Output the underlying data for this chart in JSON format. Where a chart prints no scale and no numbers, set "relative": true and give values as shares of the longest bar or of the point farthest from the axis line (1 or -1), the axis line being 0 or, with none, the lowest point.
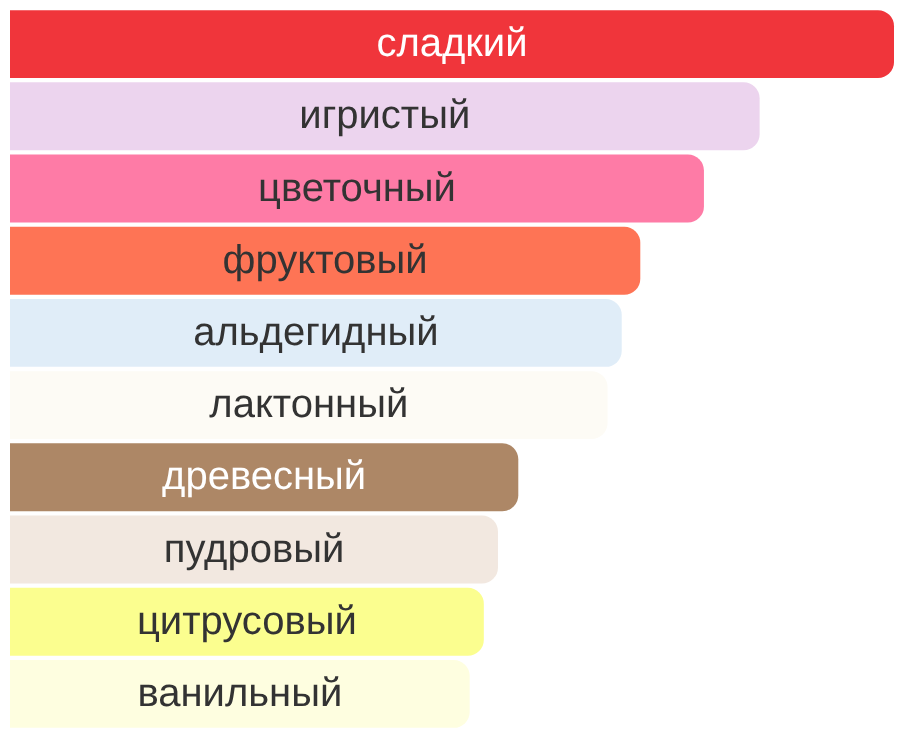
{
  "chart_data": {
    "type": "bar",
    "orientation": "horizontal",
    "relative": true,
    "categories": [
      "сладкий",
      "игристый",
      "цветочный",
      "фруктовый",
      "альдегидный",
      "лактонный",
      "древесный",
      "пудровый",
      "цитрусовый",
      "ванильный"
    ],
    "values": [
      1,
      0.848,
      0.785,
      0.713,
      0.692,
      0.676,
      0.575,
      0.552,
      0.536,
      0.52
    ],
    "colors": [
      "#f0353b",
      "#ecd4ee",
      "#fe7ba6",
      "#fe7455",
      "#e0edf8",
      "#fdfbf5",
      "#ad8766",
      "#f2e8e0",
      "#fbfe8f",
      "#fefee0"
    ]
  }
}
